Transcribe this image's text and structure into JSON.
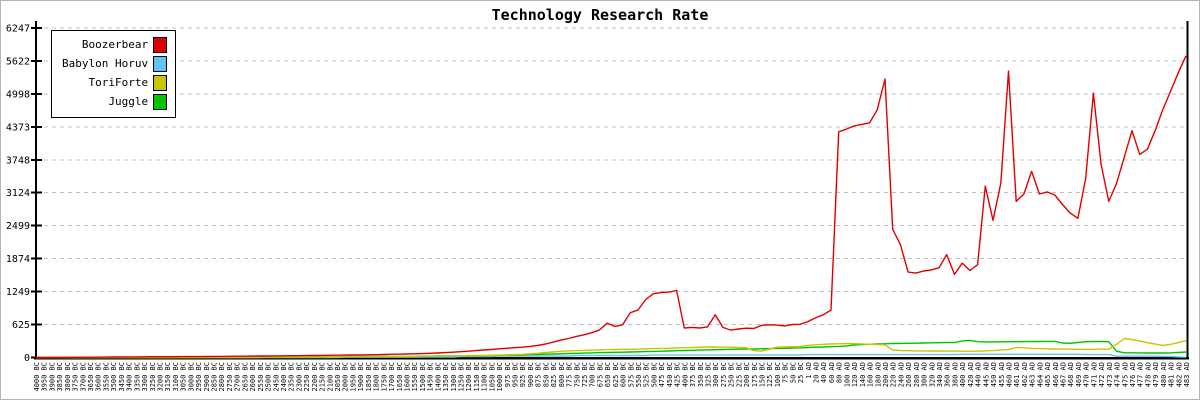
{
  "title": "Technology Research Rate",
  "legend": [
    {
      "label": "Boozerbear",
      "color": "#e10000"
    },
    {
      "label": "Babylon Horuv",
      "color": "#5fc3ef"
    },
    {
      "label": "ToriForte",
      "color": "#c9c400"
    },
    {
      "label": "Juggle",
      "color": "#00c400"
    }
  ],
  "colors": {
    "axis": "#000000",
    "gridline": "#c0c0c0",
    "background": "#ffffff"
  },
  "chart_data": {
    "type": "line",
    "title": "Technology Research Rate",
    "xlabel": "",
    "ylabel": "",
    "ylim": [
      0,
      6247
    ],
    "grid": "horizontal-dashed",
    "legend_position": "top-left",
    "y_ticks": [
      0,
      625,
      1249,
      1874,
      2499,
      3124,
      3748,
      4373,
      4998,
      5622,
      6247
    ],
    "x_labels": [
      "4000 BC",
      "3950 BC",
      "3900 BC",
      "3850 BC",
      "3800 BC",
      "3750 BC",
      "3700 BC",
      "3650 BC",
      "3600 BC",
      "3550 BC",
      "3500 BC",
      "3450 BC",
      "3400 BC",
      "3350 BC",
      "3300 BC",
      "3250 BC",
      "3200 BC",
      "3150 BC",
      "3100 BC",
      "3050 BC",
      "3000 BC",
      "2950 BC",
      "2900 BC",
      "2850 BC",
      "2800 BC",
      "2750 BC",
      "2700 BC",
      "2650 BC",
      "2600 BC",
      "2550 BC",
      "2500 BC",
      "2450 BC",
      "2400 BC",
      "2350 BC",
      "2300 BC",
      "2250 BC",
      "2200 BC",
      "2150 BC",
      "2100 BC",
      "2050 BC",
      "2000 BC",
      "1950 BC",
      "1900 BC",
      "1850 BC",
      "1800 BC",
      "1750 BC",
      "1700 BC",
      "1650 BC",
      "1600 BC",
      "1550 BC",
      "1500 BC",
      "1450 BC",
      "1400 BC",
      "1350 BC",
      "1300 BC",
      "1250 BC",
      "1200 BC",
      "1150 BC",
      "1100 BC",
      "1050 BC",
      "1000 BC",
      "975 BC",
      "950 BC",
      "925 BC",
      "900 BC",
      "875 BC",
      "850 BC",
      "825 BC",
      "800 BC",
      "775 BC",
      "750 BC",
      "725 BC",
      "700 BC",
      "675 BC",
      "650 BC",
      "625 BC",
      "600 BC",
      "575 BC",
      "550 BC",
      "525 BC",
      "500 BC",
      "475 BC",
      "450 BC",
      "425 BC",
      "400 BC",
      "375 BC",
      "350 BC",
      "325 BC",
      "300 BC",
      "275 BC",
      "250 BC",
      "225 BC",
      "200 BC",
      "175 BC",
      "150 BC",
      "125 BC",
      "100 BC",
      "75 BC",
      "50 BC",
      "25 BC",
      "1 AD",
      "20 AD",
      "40 AD",
      "60 AD",
      "80 AD",
      "100 AD",
      "120 AD",
      "140 AD",
      "160 AD",
      "180 AD",
      "200 AD",
      "220 AD",
      "240 AD",
      "260 AD",
      "280 AD",
      "300 AD",
      "320 AD",
      "340 AD",
      "360 AD",
      "380 AD",
      "400 AD",
      "420 AD",
      "440 AD",
      "445 AD",
      "450 AD",
      "455 AD",
      "460 AD",
      "461 AD",
      "462 AD",
      "463 AD",
      "464 AD",
      "465 AD",
      "466 AD",
      "467 AD",
      "468 AD",
      "469 AD",
      "470 AD",
      "471 AD",
      "472 AD",
      "473 AD",
      "474 AD",
      "475 AD",
      "476 AD",
      "477 AD",
      "478 AD",
      "479 AD",
      "480 AD",
      "481 AD",
      "482 AD",
      "483 AD"
    ],
    "series": [
      {
        "name": "Boozerbear",
        "color": "#e10000",
        "values": [
          0,
          0,
          0,
          0,
          2,
          3,
          4,
          5,
          6,
          8,
          9,
          10,
          11,
          12,
          13,
          15,
          15,
          16,
          16,
          17,
          18,
          18,
          19,
          20,
          21,
          22,
          24,
          25,
          26,
          28,
          28,
          30,
          32,
          34,
          35,
          36,
          38,
          40,
          42,
          44,
          46,
          48,
          50,
          52,
          54,
          57,
          60,
          63,
          66,
          70,
          74,
          80,
          86,
          92,
          100,
          110,
          120,
          130,
          142,
          152,
          165,
          175,
          185,
          196,
          210,
          230,
          255,
          290,
          330,
          360,
          400,
          430,
          470,
          520,
          650,
          590,
          620,
          850,
          900,
          1100,
          1210,
          1230,
          1240,
          1270,
          560,
          570,
          560,
          580,
          810,
          570,
          520,
          540,
          555,
          550,
          610,
          620,
          615,
          600,
          625,
          630,
          680,
          750,
          810,
          900,
          4280,
          4330,
          4390,
          4420,
          4450,
          4700,
          5280,
          2430,
          2140,
          1620,
          1600,
          1640,
          1660,
          1700,
          1950,
          1575,
          1790,
          1650,
          1760,
          3250,
          2600,
          3300,
          5430,
          2960,
          3100,
          3530,
          3100,
          3140,
          3080,
          2900,
          2740,
          2640,
          3400,
          5010,
          3660,
          2960,
          3300,
          3800,
          4300,
          3850,
          3950,
          4300,
          4700,
          5050,
          5400,
          5720
        ]
      },
      {
        "name": "Babylon Horuv",
        "color": "#5fc3ef",
        "values": [
          0,
          0,
          0,
          0,
          0,
          0,
          0,
          0,
          0,
          0,
          0,
          0,
          0,
          0,
          0,
          0,
          0,
          0,
          0,
          0,
          0,
          0,
          0,
          0,
          0,
          0,
          0,
          0,
          0,
          0,
          0,
          0,
          0,
          0,
          0,
          0,
          0,
          0,
          0,
          0,
          5,
          5,
          5,
          5,
          5,
          5,
          5,
          5,
          5,
          5,
          10,
          10,
          10,
          10,
          10,
          18,
          18,
          18,
          18,
          18,
          28,
          28,
          28,
          28,
          28,
          28,
          28,
          28,
          28,
          28,
          38,
          38,
          38,
          38,
          38,
          38,
          38,
          38,
          38,
          38,
          45,
          45,
          45,
          45,
          45,
          45,
          45,
          45,
          45,
          45,
          50,
          50,
          50,
          50,
          50,
          50,
          50,
          50,
          50,
          50,
          55,
          55,
          55,
          55,
          55,
          55,
          55,
          55,
          55,
          55,
          55,
          55,
          55,
          55,
          55,
          55,
          55,
          55,
          55,
          55,
          60,
          60,
          60,
          60,
          60,
          60,
          60,
          60,
          60,
          60,
          60,
          60,
          60,
          60,
          60,
          60,
          55,
          55,
          55,
          55,
          25,
          25,
          25,
          25,
          25,
          25,
          20,
          20,
          12,
          5
        ]
      },
      {
        "name": "ToriForte",
        "color": "#c9c400",
        "values": [
          0,
          0,
          0,
          0,
          0,
          0,
          0,
          0,
          0,
          0,
          0,
          0,
          0,
          0,
          0,
          0,
          0,
          0,
          0,
          0,
          0,
          0,
          0,
          0,
          0,
          0,
          0,
          0,
          0,
          0,
          8,
          8,
          8,
          8,
          8,
          8,
          8,
          8,
          8,
          8,
          15,
          15,
          15,
          15,
          15,
          15,
          15,
          15,
          15,
          15,
          22,
          24,
          26,
          28,
          30,
          33,
          36,
          38,
          40,
          42,
          45,
          50,
          55,
          60,
          70,
          80,
          95,
          105,
          120,
          125,
          130,
          135,
          140,
          145,
          150,
          152,
          155,
          158,
          160,
          165,
          168,
          172,
          175,
          180,
          185,
          190,
          195,
          200,
          200,
          198,
          195,
          190,
          185,
          130,
          122,
          160,
          195,
          200,
          205,
          210,
          230,
          240,
          250,
          255,
          260,
          265,
          262,
          258,
          250,
          245,
          240,
          140,
          132,
          128,
          126,
          125,
          124,
          123,
          122,
          121,
          120,
          120,
          120,
          125,
          130,
          140,
          150,
          190,
          185,
          172,
          168,
          165,
          162,
          160,
          158,
          155,
          155,
          156,
          158,
          160,
          250,
          360,
          340,
          310,
          280,
          255,
          230,
          250,
          280,
          320
        ]
      },
      {
        "name": "Juggle",
        "color": "#00c400",
        "values": [
          0,
          0,
          0,
          0,
          0,
          0,
          0,
          0,
          0,
          0,
          0,
          0,
          0,
          0,
          0,
          0,
          0,
          0,
          0,
          0,
          0,
          0,
          0,
          0,
          0,
          0,
          5,
          5,
          5,
          5,
          5,
          12,
          12,
          12,
          12,
          12,
          12,
          12,
          12,
          12,
          20,
          20,
          20,
          20,
          20,
          20,
          20,
          20,
          20,
          20,
          26,
          27,
          28,
          29,
          30,
          32,
          33,
          34,
          35,
          38,
          42,
          45,
          48,
          52,
          55,
          58,
          62,
          66,
          70,
          75,
          80,
          84,
          88,
          92,
          95,
          98,
          100,
          104,
          108,
          112,
          115,
          120,
          124,
          128,
          132,
          136,
          140,
          145,
          148,
          152,
          156,
          158,
          160,
          162,
          165,
          168,
          172,
          175,
          178,
          182,
          190,
          195,
          200,
          205,
          210,
          220,
          235,
          245,
          250,
          255,
          260,
          265,
          268,
          270,
          272,
          275,
          278,
          280,
          282,
          285,
          315,
          325,
          300,
          295,
          295,
          298,
          300,
          300,
          302,
          303,
          304,
          305,
          305,
          275,
          270,
          285,
          300,
          302,
          301,
          300,
          120,
          90,
          90,
          88,
          86,
          85,
          85,
          88,
          95,
          105
        ]
      }
    ]
  }
}
